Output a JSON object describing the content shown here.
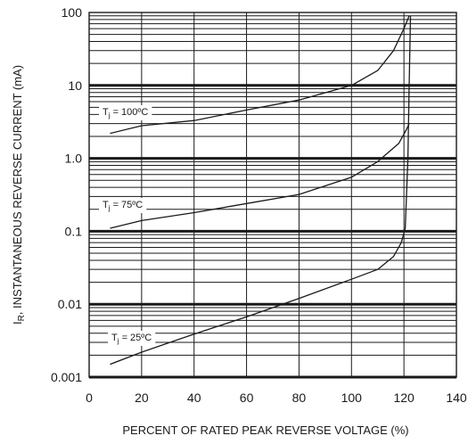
{
  "chart_data": {
    "type": "line",
    "xlabel": "PERCENT OF RATED PEAK REVERSE VOLTAGE (%)",
    "ylabel_symbol": "I",
    "ylabel_subscript": "R",
    "ylabel_rest": ", INSTANTANEOUS REVERSE CURRENT (mA)",
    "xlim": [
      0,
      140
    ],
    "ylim": [
      0.001,
      100
    ],
    "yscale": "log",
    "grid": true,
    "x_ticks": [
      "0",
      "20",
      "40",
      "60",
      "80",
      "100",
      "120",
      "140"
    ],
    "y_ticks": [
      "0.001",
      "0.01",
      "0.1",
      "1.0",
      "10",
      "100"
    ],
    "series": [
      {
        "label_prefix": "T",
        "label_sub": "j",
        "label_suffix": " = 100ºC",
        "x": [
          8,
          20,
          40,
          60,
          80,
          100,
          110,
          116,
          120,
          122
        ],
        "y": [
          2.2,
          2.8,
          3.3,
          4.6,
          6.3,
          10,
          16,
          30,
          60,
          90
        ]
      },
      {
        "label_prefix": "T",
        "label_sub": "j",
        "label_suffix": " = 75ºC",
        "x": [
          8,
          20,
          40,
          60,
          80,
          100,
          110,
          118,
          121,
          122
        ],
        "y": [
          0.11,
          0.14,
          0.18,
          0.24,
          0.32,
          0.55,
          0.9,
          1.6,
          2.5,
          3.0
        ]
      },
      {
        "label_prefix": "T",
        "label_sub": "j",
        "label_suffix": " = 25ºC",
        "x": [
          8,
          20,
          40,
          60,
          80,
          100,
          110,
          116,
          119,
          120.5,
          121.5,
          122,
          122.5
        ],
        "y": [
          0.0015,
          0.0022,
          0.0039,
          0.0067,
          0.012,
          0.022,
          0.03,
          0.045,
          0.07,
          0.11,
          1,
          10,
          90
        ]
      }
    ]
  }
}
